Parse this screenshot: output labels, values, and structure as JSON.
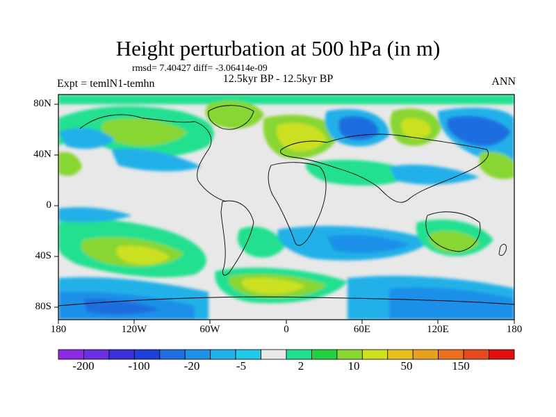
{
  "title": "Height perturbation at 500 hPa (in m)",
  "stats": "rmsd= 7.40427 diff= -3.06414e-09",
  "period": "12.5kyr BP - 12.5kyr BP",
  "experiment": "Expt = temlN1-temhn",
  "season": "ANN",
  "lat_labels": [
    "80N",
    "40N",
    "0",
    "40S",
    "80S"
  ],
  "lon_labels": [
    "180",
    "120W",
    "60W",
    "0",
    "60E",
    "120E",
    "180"
  ],
  "legend": {
    "colors": [
      "#8a2be2",
      "#6a2fe0",
      "#3b2fd6",
      "#1e40d8",
      "#1e6ee0",
      "#1e90e8",
      "#22b0e8",
      "#22c8e8",
      "#e8e8e8",
      "#20e090",
      "#22d040",
      "#88d630",
      "#cce020",
      "#e8c020",
      "#e8a020",
      "#e87020",
      "#e84a20",
      "#e01010"
    ],
    "labels": [
      "-200",
      "-100",
      "-20",
      "-5",
      "2",
      "10",
      "50",
      "150"
    ]
  }
}
